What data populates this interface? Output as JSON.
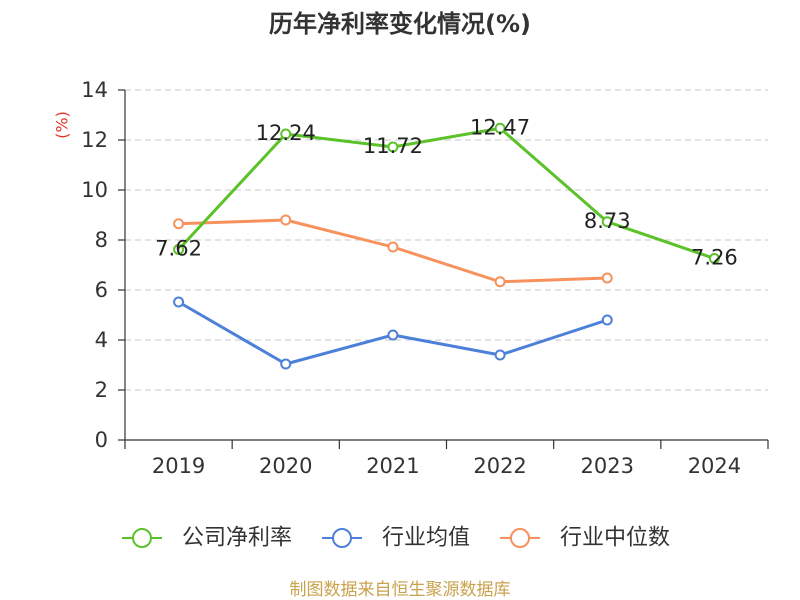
{
  "chart_data": {
    "type": "line",
    "title": "历年净利率变化情况(%)",
    "ylabel": "(%)",
    "xlabel": "",
    "categories": [
      "2019",
      "2020",
      "2021",
      "2022",
      "2023",
      "2024"
    ],
    "ylim": [
      0,
      14
    ],
    "yticks": [
      0,
      2,
      4,
      6,
      8,
      10,
      12,
      14
    ],
    "grid": true,
    "legend": "bottom",
    "series": [
      {
        "name": "公司净利率",
        "color": "#5cc229",
        "values": [
          7.62,
          12.24,
          11.72,
          12.47,
          8.73,
          7.26
        ],
        "data_labels": true
      },
      {
        "name": "行业均值",
        "color": "#4d80d8",
        "values": [
          5.52,
          3.04,
          4.2,
          3.4,
          4.8,
          null
        ],
        "data_labels": false
      },
      {
        "name": "行业中位数",
        "color": "#f7925d",
        "values": [
          8.65,
          8.8,
          7.72,
          6.33,
          6.48,
          null
        ],
        "data_labels": false
      }
    ]
  },
  "source_note": "制图数据来自恒生聚源数据库",
  "colors": {
    "ylabel": "#e0352b",
    "source_note": "#c9a24c"
  }
}
